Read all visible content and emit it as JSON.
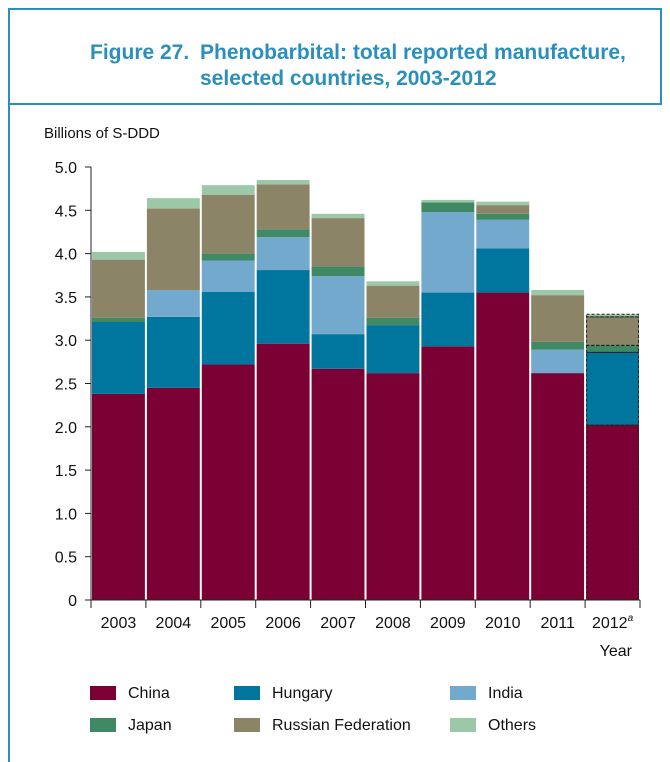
{
  "figure": {
    "number": "Figure 27.",
    "title": "Phenobarbital: total reported manufacture, selected countries, 2003-2012"
  },
  "chart_data": {
    "type": "bar",
    "stacked": true,
    "ylabel": "Billions of S-DDD",
    "xlabel": "Year",
    "ylim": [
      0,
      5.0
    ],
    "yticks": [
      "0",
      "0.5",
      "1.0",
      "1.5",
      "2.0",
      "2.5",
      "3.0",
      "3.5",
      "4.0",
      "4.5",
      "5.0"
    ],
    "categories": [
      "2003",
      "2004",
      "2005",
      "2006",
      "2007",
      "2008",
      "2009",
      "2010",
      "2011",
      "2012"
    ],
    "category_note": {
      "index": 9,
      "superscript": "a",
      "dashed_outline": true
    },
    "grid": false,
    "legend_position": "bottom",
    "series": [
      {
        "name": "China",
        "color": "#7b0033",
        "values": [
          2.38,
          2.45,
          2.72,
          2.96,
          2.67,
          2.62,
          2.93,
          3.55,
          2.62,
          2.02
        ]
      },
      {
        "name": "Hungary",
        "color": "#00759d",
        "values": [
          0.83,
          0.82,
          0.84,
          0.85,
          0.4,
          0.55,
          0.62,
          0.51,
          0.0,
          0.84
        ]
      },
      {
        "name": "India",
        "color": "#72a9cc",
        "values": [
          0.0,
          0.31,
          0.36,
          0.38,
          0.67,
          0.0,
          0.93,
          0.33,
          0.27,
          0.0
        ]
      },
      {
        "name": "Japan",
        "color": "#3f8a64",
        "values": [
          0.05,
          0.0,
          0.08,
          0.09,
          0.11,
          0.09,
          0.11,
          0.07,
          0.09,
          0.08
        ]
      },
      {
        "name": "Russian Federation",
        "color": "#8b8467",
        "values": [
          0.67,
          0.94,
          0.68,
          0.52,
          0.56,
          0.37,
          0.0,
          0.1,
          0.54,
          0.33
        ]
      },
      {
        "name": "Others",
        "color": "#9cc8a8",
        "values": [
          0.09,
          0.12,
          0.11,
          0.05,
          0.05,
          0.05,
          0.03,
          0.04,
          0.06,
          0.03
        ]
      }
    ]
  }
}
